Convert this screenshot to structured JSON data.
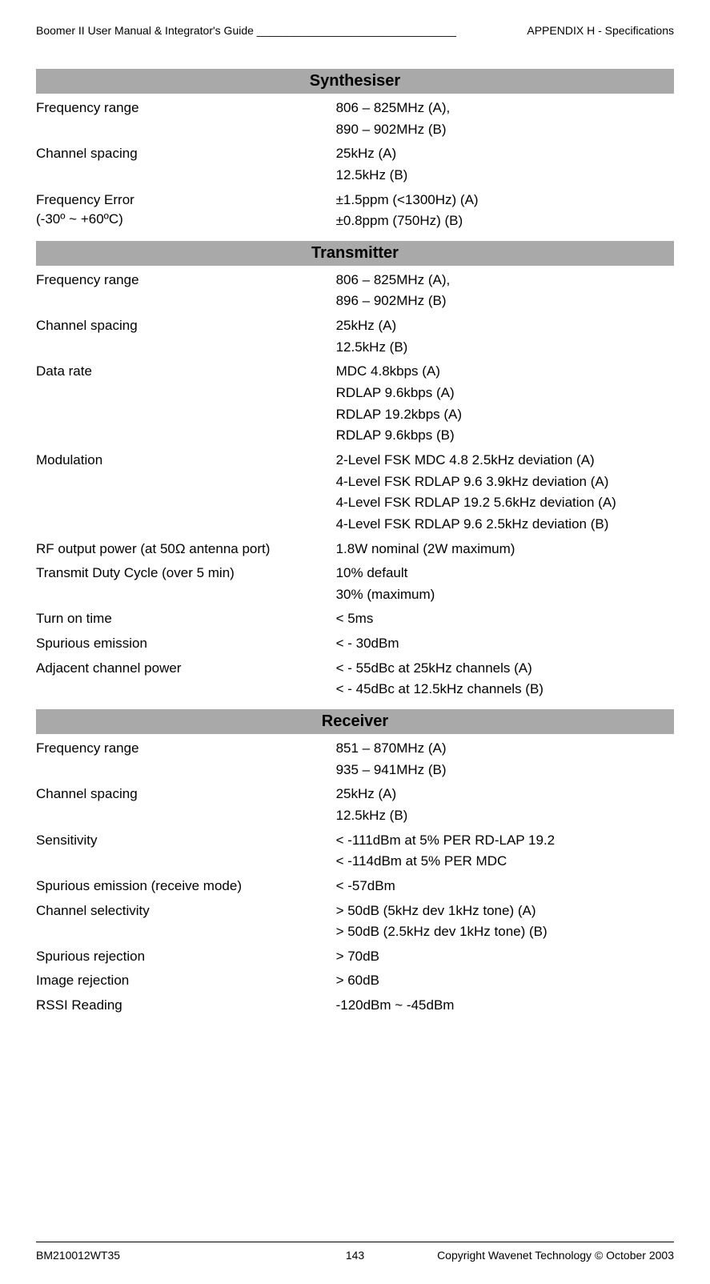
{
  "header": {
    "left": "Boomer II User Manual & Integrator's Guide ________________________________",
    "right": "APPENDIX H - Specifications"
  },
  "sections": [
    {
      "title": "Synthesiser",
      "rows": [
        {
          "label": "Frequency range",
          "values": [
            "806 – 825MHz (A),",
            "890 – 902MHz (B)"
          ]
        },
        {
          "label": "Channel spacing",
          "values": [
            "25kHz (A)",
            "12.5kHz (B)"
          ]
        },
        {
          "label": "Frequency Error",
          "label2": "(-30º ~ +60ºC)",
          "values": [
            "±1.5ppm (<1300Hz) (A)",
            "±0.8ppm (750Hz) (B)"
          ]
        }
      ]
    },
    {
      "title": "Transmitter",
      "rows": [
        {
          "label": "Frequency range",
          "values": [
            "806 – 825MHz (A),",
            "896 – 902MHz (B)"
          ]
        },
        {
          "label": "Channel spacing",
          "values": [
            "25kHz (A)",
            "12.5kHz (B)"
          ]
        },
        {
          "label": "Data rate",
          "values": [
            "MDC 4.8kbps (A)",
            "RDLAP 9.6kbps (A)",
            "RDLAP 19.2kbps (A)",
            "RDLAP 9.6kbps (B)"
          ]
        },
        {
          "label": "Modulation",
          "values": [
            "2-Level FSK MDC 4.8 2.5kHz deviation (A)",
            "4-Level FSK RDLAP 9.6 3.9kHz deviation (A)",
            "4-Level FSK RDLAP 19.2 5.6kHz deviation (A)",
            "4-Level FSK RDLAP 9.6 2.5kHz deviation (B)"
          ]
        },
        {
          "label": "RF output power (at 50Ω antenna port)",
          "values": [
            "1.8W nominal (2W maximum)"
          ]
        },
        {
          "label": "Transmit Duty Cycle (over 5 min)",
          "values": [
            "10% default",
            "30% (maximum)"
          ]
        },
        {
          "label": "Turn on time",
          "values": [
            "< 5ms"
          ]
        },
        {
          "label": "Spurious emission",
          "values": [
            "< - 30dBm"
          ]
        },
        {
          "label": "Adjacent channel power",
          "values": [
            "< - 55dBc at 25kHz channels (A)",
            "< - 45dBc at 12.5kHz channels (B)"
          ]
        }
      ]
    },
    {
      "title": "Receiver",
      "rows": [
        {
          "label": "Frequency range",
          "values": [
            "851 – 870MHz (A)",
            "935 – 941MHz (B)"
          ]
        },
        {
          "label": "Channel spacing",
          "values": [
            "25kHz (A)",
            "12.5kHz (B)"
          ]
        },
        {
          "label": "Sensitivity",
          "values": [
            "< -111dBm at 5% PER RD-LAP 19.2",
            "< -114dBm at 5% PER MDC"
          ]
        },
        {
          "label": "Spurious emission (receive mode)",
          "values": [
            "< -57dBm"
          ]
        },
        {
          "label": "Channel selectivity",
          "values": [
            "> 50dB (5kHz dev 1kHz tone) (A)",
            "> 50dB (2.5kHz dev 1kHz tone) (B)"
          ]
        },
        {
          "label": "Spurious rejection",
          "values": [
            "> 70dB"
          ]
        },
        {
          "label": "Image rejection",
          "values": [
            "> 60dB"
          ]
        },
        {
          "label": "RSSI Reading",
          "values": [
            "-120dBm ~ -45dBm"
          ]
        }
      ]
    }
  ],
  "footer": {
    "id": "BM210012WT35",
    "page": "143",
    "copy": "Copyright Wavenet Technology © October 2003"
  }
}
